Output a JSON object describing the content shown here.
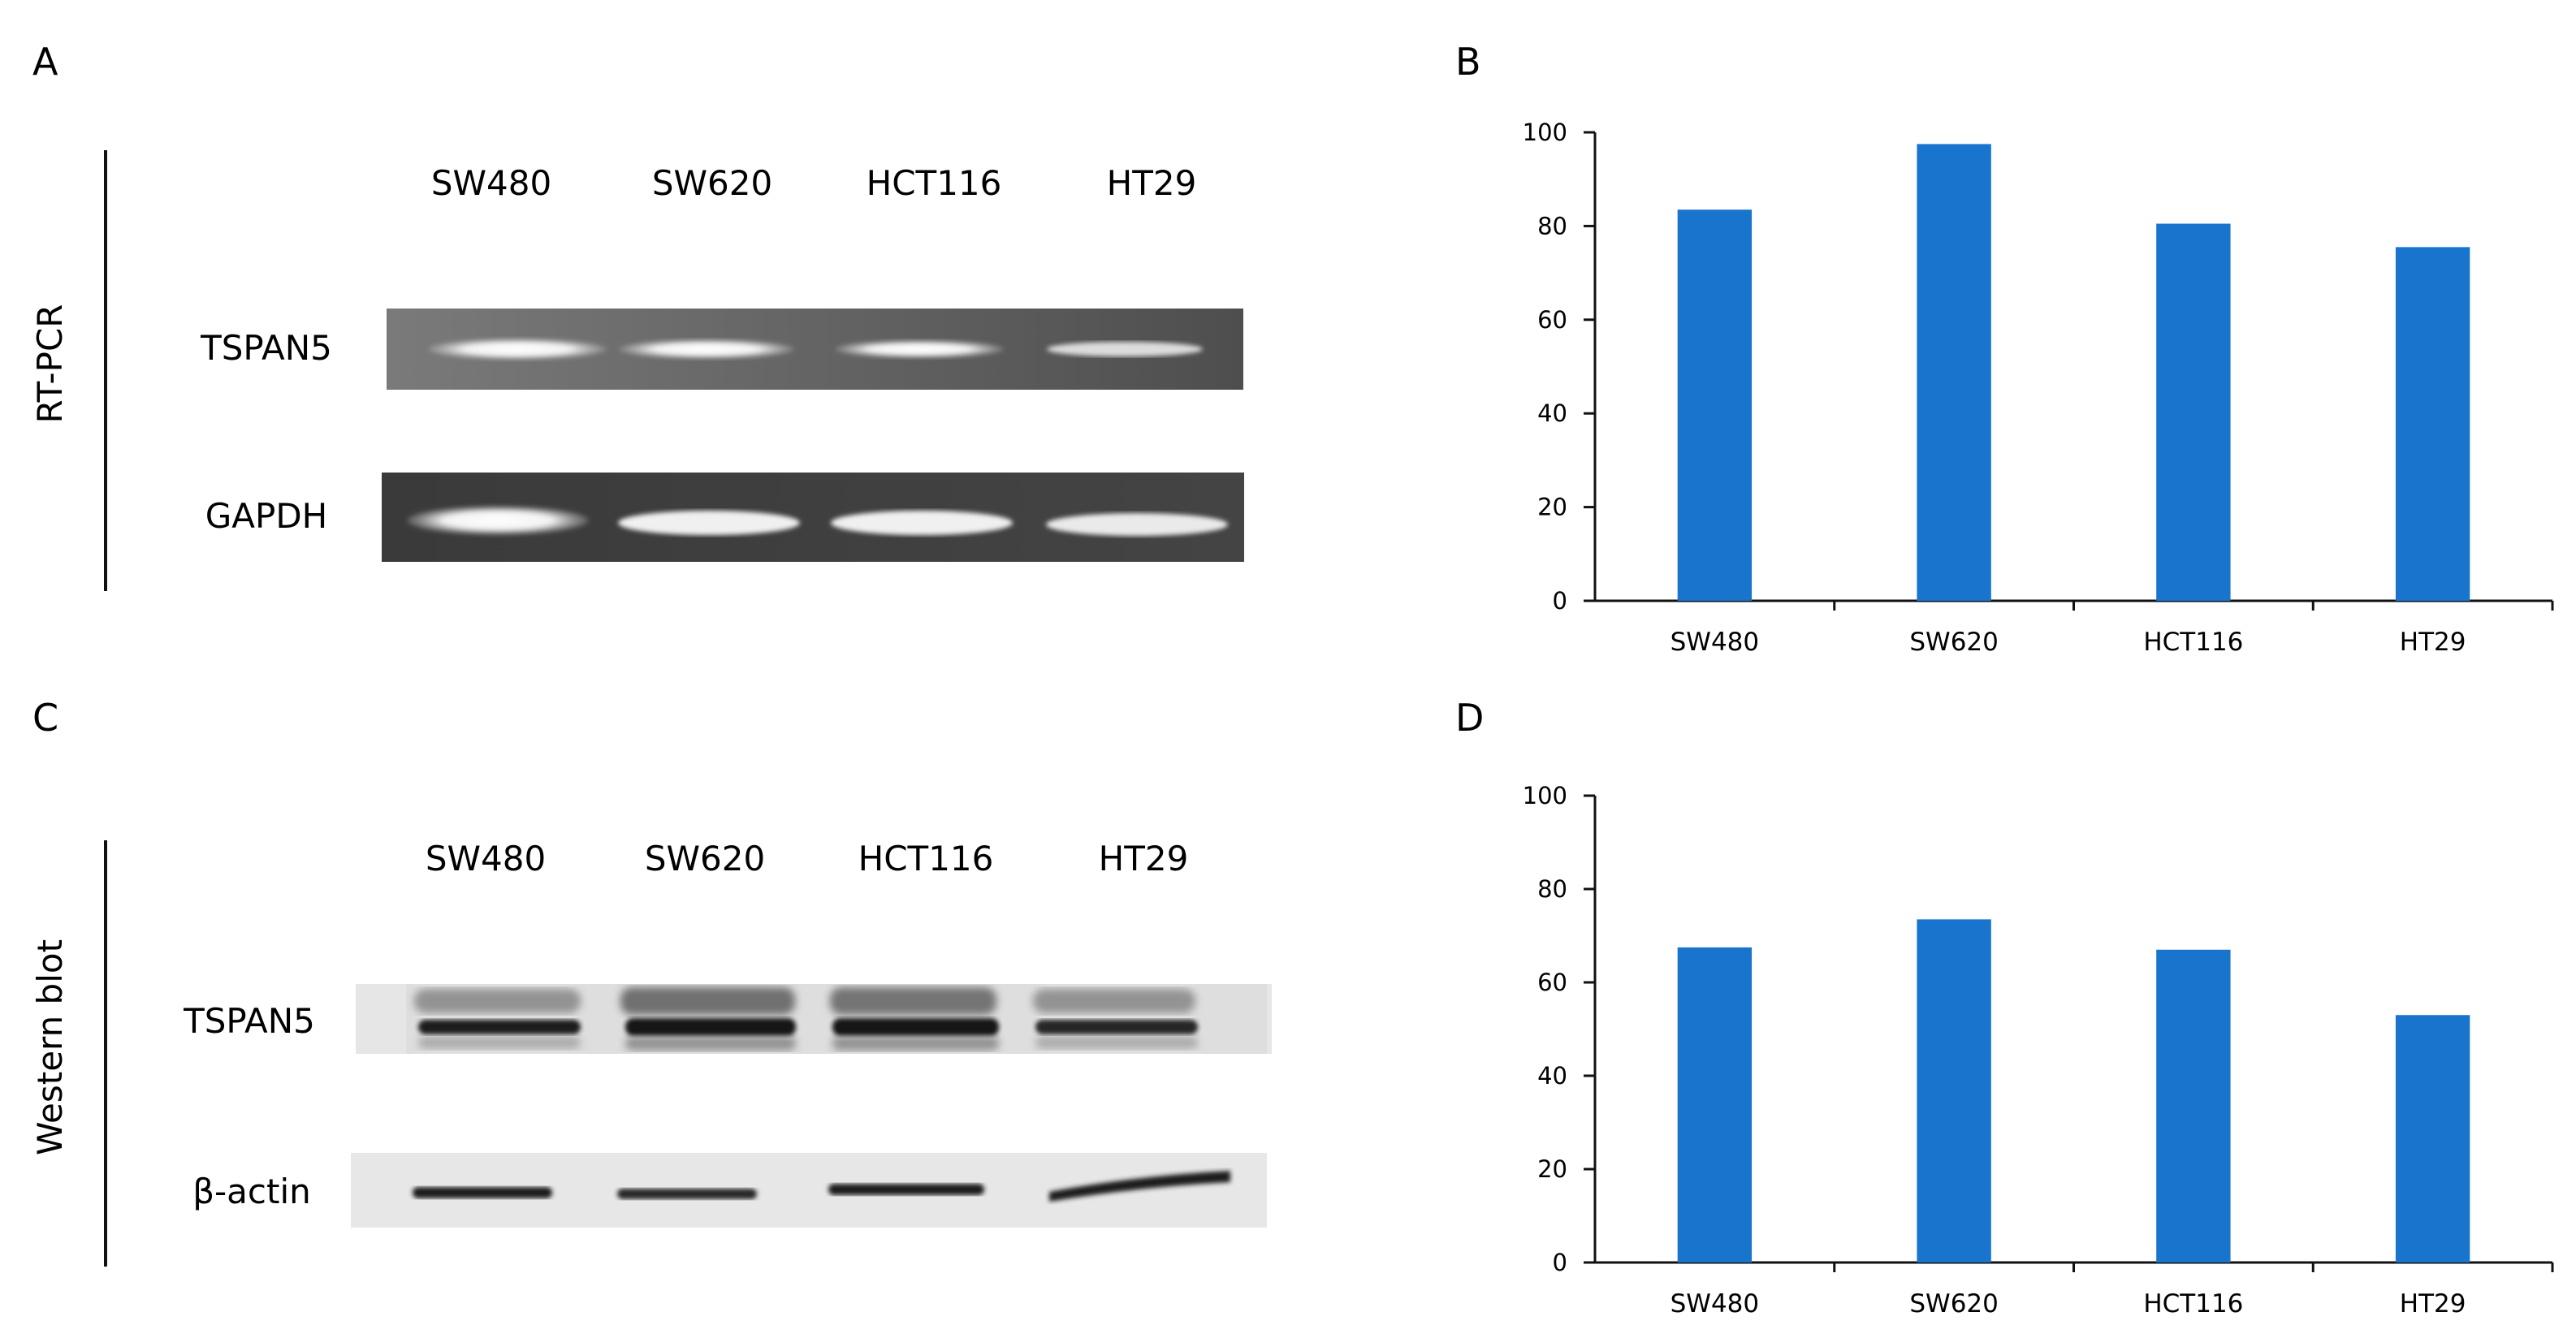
{
  "panels": {
    "A": {
      "letter": "A",
      "assay": "RT-PCR",
      "lanes": [
        "SW480",
        "SW620",
        "HCT116",
        "HT29"
      ],
      "rows": [
        "TSPAN5",
        "GAPDH"
      ]
    },
    "C": {
      "letter": "C",
      "assay": "Western blot",
      "lanes": [
        "SW480",
        "SW620",
        "HCT116",
        "HT29"
      ],
      "rows": [
        "TSPAN5",
        "β-actin"
      ]
    }
  },
  "chart_data": [
    {
      "letter": "B",
      "type": "bar",
      "categories": [
        "SW480",
        "SW620",
        "HCT116",
        "HT29"
      ],
      "values": [
        83.5,
        97.5,
        80.5,
        75.5
      ],
      "ylim": [
        0,
        100
      ],
      "yticks": [
        0,
        20,
        40,
        60,
        80,
        100
      ],
      "bar_color": "#1874CD",
      "grid": false
    },
    {
      "letter": "D",
      "type": "bar",
      "categories": [
        "SW480",
        "SW620",
        "HCT116",
        "HT29"
      ],
      "values": [
        67.5,
        73.5,
        67,
        53
      ],
      "ylim": [
        0,
        100
      ],
      "yticks": [
        0,
        20,
        40,
        60,
        80,
        100
      ],
      "bar_color": "#1874CD",
      "grid": false
    }
  ]
}
